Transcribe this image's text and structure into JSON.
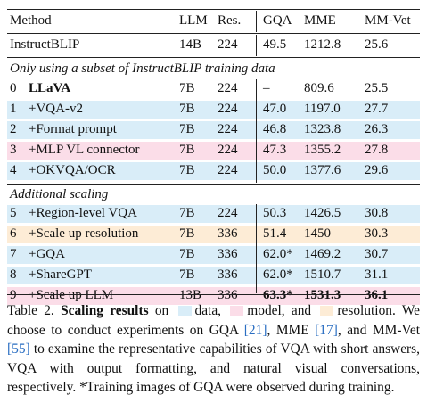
{
  "table": {
    "headers": {
      "method": "Method",
      "llm": "LLM",
      "res": "Res.",
      "gqa": "GQA",
      "mme": "MME",
      "mmvet": "MM-Vet"
    },
    "baseline": {
      "method": "InstructBLIP",
      "llm": "14B",
      "res": "224",
      "gqa": "49.5",
      "mme": "1212.8",
      "mmvet": "25.6"
    },
    "section1_title": "Only using a subset of InstructBLIP training data",
    "section1_rows": [
      {
        "idx": "0",
        "method": "LLaVA",
        "llm": "7B",
        "res": "224",
        "gqa": "–",
        "mme": "809.6",
        "mmvet": "25.5",
        "highlight": "none"
      },
      {
        "idx": "1",
        "method": "+VQA-v2",
        "llm": "7B",
        "res": "224",
        "gqa": "47.0",
        "mme": "1197.0",
        "mmvet": "27.7",
        "highlight": "data"
      },
      {
        "idx": "2",
        "method": "+Format prompt",
        "llm": "7B",
        "res": "224",
        "gqa": "46.8",
        "mme": "1323.8",
        "mmvet": "26.3",
        "highlight": "data"
      },
      {
        "idx": "3",
        "method": "+MLP VL connector",
        "llm": "7B",
        "res": "224",
        "gqa": "47.3",
        "mme": "1355.2",
        "mmvet": "27.8",
        "highlight": "model"
      },
      {
        "idx": "4",
        "method": "+OKVQA/OCR",
        "llm": "7B",
        "res": "224",
        "gqa": "50.0",
        "mme": "1377.6",
        "mmvet": "29.6",
        "highlight": "data"
      }
    ],
    "section2_title": "Additional scaling",
    "section2_rows": [
      {
        "idx": "5",
        "method": "+Region-level VQA",
        "llm": "7B",
        "res": "224",
        "gqa": "50.3",
        "mme": "1426.5",
        "mmvet": "30.8",
        "highlight": "data"
      },
      {
        "idx": "6",
        "method": "+Scale up resolution",
        "llm": "7B",
        "res": "336",
        "gqa": "51.4",
        "mme": "1450",
        "mmvet": "30.3",
        "highlight": "resolution"
      },
      {
        "idx": "7",
        "method": "+GQA",
        "llm": "7B",
        "res": "336",
        "gqa": "62.0*",
        "mme": "1469.2",
        "mmvet": "30.7",
        "highlight": "data"
      },
      {
        "idx": "8",
        "method": "+ShareGPT",
        "llm": "7B",
        "res": "336",
        "gqa": "62.0*",
        "mme": "1510.7",
        "mmvet": "31.1",
        "highlight": "data"
      },
      {
        "idx": "9",
        "method": "+Scale up LLM",
        "llm": "13B",
        "res": "336",
        "gqa": "63.3*",
        "mme": "1531.3",
        "mmvet": "36.1",
        "highlight": "model"
      }
    ]
  },
  "colors": {
    "data": "#d9edf8",
    "model": "#fbdde8",
    "resolution": "#fdecd6",
    "ref": "#2a6ec2"
  },
  "caption": {
    "label": "Table 2.",
    "title": "Scaling results",
    "t_on": "on",
    "t_data": "data,",
    "t_model": "model, and",
    "t_res": "resolution.",
    "t_body1": "We choose to conduct experiments on GQA",
    "ref_gqa": "[21]",
    "t_body2": ", MME",
    "ref_mme": "[17]",
    "t_body3": ", and MM-Vet",
    "ref_mmvet": "[55]",
    "t_body4": "to examine the representative capabilities of VQA with short answers, VQA with output formatting, and natural visual conversations, respectively.",
    "t_star": "*Training images of GQA were observed during training."
  }
}
